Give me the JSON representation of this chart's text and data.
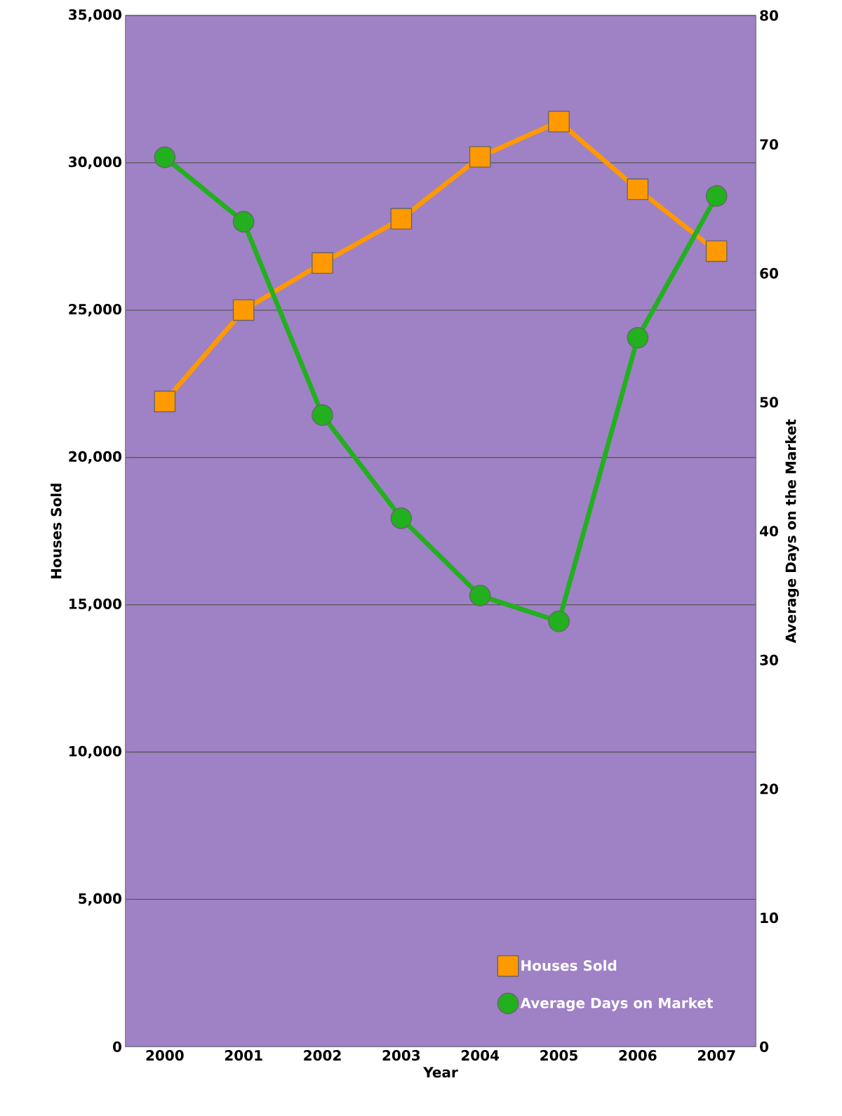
{
  "chart_data": {
    "type": "line",
    "xlabel": "Year",
    "ylabel": "Houses Sold",
    "y2label": "Average Days on the Market",
    "categories": [
      "2000",
      "2001",
      "2002",
      "2003",
      "2004",
      "2005",
      "2006",
      "2007"
    ],
    "series": [
      {
        "name": "Houses Sold",
        "color": "#ff9900",
        "marker": "square",
        "values": [
          21900,
          25000,
          26600,
          28100,
          30200,
          31400,
          29100,
          27000
        ]
      },
      {
        "name": "Average Days on Market",
        "color": "#22b01e",
        "marker": "circle",
        "axis": "y2",
        "values": [
          69,
          64,
          49,
          41,
          35,
          33,
          55,
          66
        ]
      }
    ],
    "ylim": [
      0,
      35000
    ],
    "yticks": [
      {
        "value": 0,
        "label": "0"
      },
      {
        "value": 5000,
        "label": "5,000"
      },
      {
        "value": 10000,
        "label": "10,000"
      },
      {
        "value": 15000,
        "label": "15,000"
      },
      {
        "value": 20000,
        "label": "20,000"
      },
      {
        "value": 25000,
        "label": "25,000"
      },
      {
        "value": 30000,
        "label": "30,000"
      },
      {
        "value": 35000,
        "label": "35,000"
      }
    ],
    "y2lim": [
      0,
      80
    ],
    "y2ticks": [
      0,
      10,
      20,
      30,
      40,
      50,
      60,
      70,
      80
    ],
    "grid": "y",
    "legend": "bottom right"
  }
}
